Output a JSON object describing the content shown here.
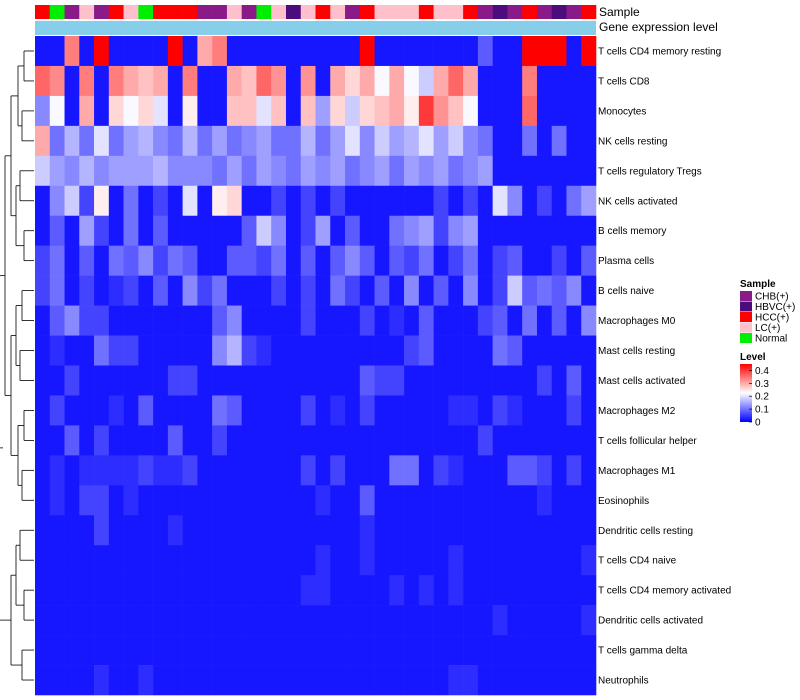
{
  "chart_data": {
    "type": "heatmap",
    "track_labels": {
      "sample": "Sample",
      "gene": "Gene expression level"
    },
    "sample_groups": [
      {
        "name": "CHB(+)",
        "color": "#8B1A89"
      },
      {
        "name": "HBVC(+)",
        "color": "#4B0C7C"
      },
      {
        "name": "HCC(+)",
        "color": "#FF0000"
      },
      {
        "name": "LC(+)",
        "color": "#FFC0CB"
      },
      {
        "name": "Normal",
        "color": "#00EE00"
      }
    ],
    "sample_annotation": [
      2,
      4,
      0,
      3,
      0,
      2,
      3,
      4,
      2,
      2,
      2,
      0,
      0,
      3,
      0,
      4,
      3,
      1,
      3,
      2,
      3,
      0,
      2,
      3,
      3,
      3,
      2,
      3,
      3,
      2,
      0,
      1,
      0,
      2,
      0,
      1,
      0,
      2
    ],
    "gene_expression_color": "#87CEEB",
    "legend": {
      "sample_title": "Sample",
      "level_title": "Level",
      "level_ticks": [
        "0.4",
        "0.3",
        "0.2",
        "0.1",
        "0"
      ],
      "level_tick_values": [
        0.4,
        0.3,
        0.2,
        0.1,
        0
      ],
      "colors": {
        "low": "#0000FF",
        "mid": "#FFFFFF",
        "high": "#FF0000"
      },
      "max": 0.45
    },
    "rows": [
      {
        "label": "T cells CD4 memory resting",
        "values": [
          0.02,
          0.02,
          0.34,
          0.02,
          0.45,
          0.02,
          0.02,
          0.02,
          0.02,
          0.45,
          0.02,
          0.3,
          0.34,
          0.02,
          0.02,
          0.02,
          0.02,
          0.02,
          0.02,
          0.02,
          0.02,
          0.02,
          0.45,
          0.02,
          0.02,
          0.02,
          0.02,
          0.02,
          0.02,
          0.02,
          0.08,
          0.02,
          0.02,
          0.45,
          0.45,
          0.45,
          0.02,
          0.45
        ]
      },
      {
        "label": "T cells CD8",
        "values": [
          0.36,
          0.33,
          0.02,
          0.34,
          0.02,
          0.34,
          0.3,
          0.28,
          0.3,
          0.02,
          0.34,
          0.02,
          0.02,
          0.3,
          0.28,
          0.36,
          0.32,
          0.02,
          0.32,
          0.02,
          0.3,
          0.26,
          0.3,
          0.22,
          0.3,
          0.22,
          0.18,
          0.3,
          0.36,
          0.3,
          0.02,
          0.02,
          0.02,
          0.34,
          0.02,
          0.02,
          0.02,
          0.02
        ]
      },
      {
        "label": "Monocytes",
        "values": [
          0.12,
          0.22,
          0.02,
          0.3,
          0.02,
          0.26,
          0.22,
          0.26,
          0.2,
          0.02,
          0.24,
          0.02,
          0.02,
          0.28,
          0.28,
          0.2,
          0.28,
          0.02,
          0.28,
          0.14,
          0.26,
          0.18,
          0.26,
          0.28,
          0.3,
          0.24,
          0.4,
          0.32,
          0.28,
          0.22,
          0.02,
          0.02,
          0.02,
          0.36,
          0.02,
          0.02,
          0.02,
          0.02
        ]
      },
      {
        "label": "NK cells resting",
        "values": [
          0.3,
          0.1,
          0.16,
          0.1,
          0.2,
          0.1,
          0.14,
          0.16,
          0.12,
          0.1,
          0.16,
          0.1,
          0.14,
          0.1,
          0.12,
          0.14,
          0.1,
          0.1,
          0.16,
          0.1,
          0.14,
          0.2,
          0.12,
          0.18,
          0.14,
          0.16,
          0.2,
          0.14,
          0.18,
          0.12,
          0.1,
          0.02,
          0.02,
          0.1,
          0.02,
          0.1,
          0.02,
          0.02
        ]
      },
      {
        "label": "T cells regulatory  Tregs",
        "values": [
          0.18,
          0.14,
          0.12,
          0.16,
          0.12,
          0.14,
          0.14,
          0.14,
          0.16,
          0.12,
          0.12,
          0.12,
          0.1,
          0.14,
          0.1,
          0.14,
          0.12,
          0.1,
          0.14,
          0.12,
          0.14,
          0.1,
          0.12,
          0.14,
          0.1,
          0.14,
          0.12,
          0.14,
          0.1,
          0.12,
          0.14,
          0.02,
          0.02,
          0.02,
          0.02,
          0.02,
          0.02,
          0.02
        ]
      },
      {
        "label": "NK cells activated",
        "values": [
          0.02,
          0.12,
          0.18,
          0.06,
          0.24,
          0.02,
          0.1,
          0.02,
          0.06,
          0.02,
          0.2,
          0.02,
          0.24,
          0.26,
          0.02,
          0.02,
          0.06,
          0.02,
          0.06,
          0.02,
          0.06,
          0.02,
          0.02,
          0.02,
          0.02,
          0.02,
          0.02,
          0.06,
          0.02,
          0.06,
          0.02,
          0.2,
          0.12,
          0.02,
          0.06,
          0.02,
          0.1,
          0.14
        ]
      },
      {
        "label": "B cells memory",
        "values": [
          0.02,
          0.08,
          0.02,
          0.14,
          0.06,
          0.02,
          0.1,
          0.02,
          0.08,
          0.02,
          0.02,
          0.02,
          0.02,
          0.02,
          0.08,
          0.18,
          0.12,
          0.02,
          0.06,
          0.14,
          0.02,
          0.08,
          0.02,
          0.02,
          0.1,
          0.12,
          0.14,
          0.06,
          0.12,
          0.14,
          0.02,
          0.02,
          0.02,
          0.02,
          0.02,
          0.02,
          0.02,
          0.02
        ]
      },
      {
        "label": "Plasma cells",
        "values": [
          0.06,
          0.1,
          0.02,
          0.08,
          0.02,
          0.1,
          0.08,
          0.12,
          0.06,
          0.1,
          0.08,
          0.02,
          0.02,
          0.08,
          0.08,
          0.06,
          0.1,
          0.02,
          0.08,
          0.02,
          0.08,
          0.12,
          0.08,
          0.02,
          0.08,
          0.06,
          0.1,
          0.02,
          0.06,
          0.1,
          0.02,
          0.06,
          0.08,
          0.02,
          0.02,
          0.06,
          0.02,
          0.08
        ]
      },
      {
        "label": "B cells naive",
        "values": [
          0.06,
          0.1,
          0.02,
          0.06,
          0.02,
          0.04,
          0.06,
          0.02,
          0.08,
          0.02,
          0.12,
          0.06,
          0.1,
          0.02,
          0.02,
          0.02,
          0.06,
          0.02,
          0.06,
          0.02,
          0.1,
          0.06,
          0.02,
          0.08,
          0.02,
          0.12,
          0.02,
          0.08,
          0.02,
          0.12,
          0.02,
          0.06,
          0.18,
          0.08,
          0.1,
          0.08,
          0.12,
          0.02
        ]
      },
      {
        "label": "Macrophages M0",
        "values": [
          0.02,
          0.08,
          0.12,
          0.06,
          0.06,
          0.02,
          0.02,
          0.02,
          0.02,
          0.02,
          0.02,
          0.02,
          0.08,
          0.12,
          0.02,
          0.02,
          0.02,
          0.02,
          0.06,
          0.02,
          0.02,
          0.02,
          0.06,
          0.02,
          0.04,
          0.02,
          0.08,
          0.02,
          0.02,
          0.02,
          0.06,
          0.08,
          0.02,
          0.1,
          0.02,
          0.08,
          0.02,
          0.12
        ]
      },
      {
        "label": "Mast cells resting",
        "values": [
          0.02,
          0.04,
          0.02,
          0.02,
          0.1,
          0.06,
          0.06,
          0.02,
          0.02,
          0.02,
          0.02,
          0.02,
          0.12,
          0.16,
          0.06,
          0.04,
          0.02,
          0.02,
          0.02,
          0.02,
          0.02,
          0.02,
          0.02,
          0.02,
          0.02,
          0.06,
          0.08,
          0.02,
          0.02,
          0.02,
          0.02,
          0.1,
          0.08,
          0.02,
          0.02,
          0.02,
          0.02,
          0.02
        ]
      },
      {
        "label": "Mast cells activated",
        "values": [
          0.02,
          0.02,
          0.06,
          0.02,
          0.02,
          0.02,
          0.02,
          0.02,
          0.02,
          0.06,
          0.06,
          0.02,
          0.02,
          0.02,
          0.02,
          0.02,
          0.02,
          0.02,
          0.02,
          0.02,
          0.02,
          0.02,
          0.08,
          0.06,
          0.06,
          0.02,
          0.02,
          0.02,
          0.02,
          0.02,
          0.02,
          0.02,
          0.02,
          0.02,
          0.06,
          0.02,
          0.08,
          0.02
        ]
      },
      {
        "label": "Macrophages M2",
        "values": [
          0.02,
          0.06,
          0.02,
          0.02,
          0.02,
          0.04,
          0.02,
          0.08,
          0.02,
          0.02,
          0.02,
          0.02,
          0.1,
          0.08,
          0.02,
          0.02,
          0.02,
          0.02,
          0.06,
          0.02,
          0.04,
          0.02,
          0.06,
          0.02,
          0.02,
          0.02,
          0.02,
          0.02,
          0.04,
          0.04,
          0.02,
          0.06,
          0.04,
          0.02,
          0.02,
          0.02,
          0.06,
          0.02
        ]
      },
      {
        "label": "T cells follicular helper",
        "values": [
          0.02,
          0.02,
          0.08,
          0.02,
          0.06,
          0.02,
          0.02,
          0.02,
          0.02,
          0.08,
          0.02,
          0.02,
          0.06,
          0.02,
          0.02,
          0.02,
          0.02,
          0.02,
          0.02,
          0.02,
          0.02,
          0.02,
          0.02,
          0.02,
          0.02,
          0.02,
          0.02,
          0.02,
          0.02,
          0.02,
          0.06,
          0.02,
          0.02,
          0.02,
          0.02,
          0.02,
          0.02,
          0.02
        ]
      },
      {
        "label": "Macrophages M1",
        "values": [
          0.02,
          0.04,
          0.02,
          0.04,
          0.04,
          0.04,
          0.04,
          0.06,
          0.04,
          0.04,
          0.06,
          0.02,
          0.02,
          0.02,
          0.02,
          0.02,
          0.02,
          0.02,
          0.06,
          0.02,
          0.06,
          0.02,
          0.02,
          0.02,
          0.1,
          0.1,
          0.02,
          0.06,
          0.04,
          0.02,
          0.02,
          0.02,
          0.08,
          0.08,
          0.06,
          0.02,
          0.06,
          0.02
        ]
      },
      {
        "label": "Eosinophils",
        "values": [
          0.02,
          0.04,
          0.02,
          0.06,
          0.06,
          0.02,
          0.04,
          0.02,
          0.02,
          0.02,
          0.02,
          0.02,
          0.02,
          0.02,
          0.02,
          0.02,
          0.02,
          0.02,
          0.02,
          0.04,
          0.02,
          0.02,
          0.08,
          0.02,
          0.02,
          0.02,
          0.02,
          0.02,
          0.02,
          0.02,
          0.02,
          0.02,
          0.02,
          0.02,
          0.04,
          0.02,
          0.02,
          0.02
        ]
      },
      {
        "label": "Dendritic cells resting",
        "values": [
          0.02,
          0.02,
          0.02,
          0.02,
          0.06,
          0.02,
          0.02,
          0.02,
          0.02,
          0.04,
          0.02,
          0.02,
          0.02,
          0.02,
          0.02,
          0.02,
          0.02,
          0.02,
          0.02,
          0.02,
          0.02,
          0.02,
          0.04,
          0.02,
          0.02,
          0.02,
          0.02,
          0.02,
          0.02,
          0.02,
          0.02,
          0.02,
          0.02,
          0.02,
          0.02,
          0.02,
          0.02,
          0.02
        ]
      },
      {
        "label": "T cells CD4 naive",
        "values": [
          0.02,
          0.02,
          0.02,
          0.02,
          0.02,
          0.02,
          0.02,
          0.02,
          0.02,
          0.02,
          0.02,
          0.02,
          0.02,
          0.02,
          0.02,
          0.02,
          0.02,
          0.02,
          0.02,
          0.04,
          0.02,
          0.02,
          0.04,
          0.02,
          0.02,
          0.02,
          0.02,
          0.02,
          0.04,
          0.02,
          0.02,
          0.02,
          0.02,
          0.02,
          0.02,
          0.02,
          0.02,
          0.04
        ]
      },
      {
        "label": "T cells CD4 memory activated",
        "values": [
          0.02,
          0.02,
          0.02,
          0.02,
          0.02,
          0.02,
          0.02,
          0.02,
          0.02,
          0.02,
          0.02,
          0.02,
          0.02,
          0.02,
          0.02,
          0.02,
          0.02,
          0.02,
          0.04,
          0.04,
          0.02,
          0.02,
          0.02,
          0.02,
          0.04,
          0.02,
          0.04,
          0.02,
          0.04,
          0.02,
          0.02,
          0.02,
          0.02,
          0.02,
          0.02,
          0.02,
          0.02,
          0.02
        ]
      },
      {
        "label": "Dendritic cells activated",
        "values": [
          0.02,
          0.02,
          0.02,
          0.02,
          0.02,
          0.02,
          0.02,
          0.02,
          0.02,
          0.02,
          0.02,
          0.02,
          0.02,
          0.02,
          0.02,
          0.02,
          0.02,
          0.02,
          0.02,
          0.02,
          0.02,
          0.02,
          0.02,
          0.02,
          0.02,
          0.02,
          0.02,
          0.02,
          0.02,
          0.02,
          0.02,
          0.04,
          0.02,
          0.02,
          0.02,
          0.02,
          0.02,
          0.04
        ]
      },
      {
        "label": "T cells gamma delta",
        "values": [
          0.02,
          0.02,
          0.02,
          0.02,
          0.02,
          0.02,
          0.02,
          0.02,
          0.02,
          0.02,
          0.02,
          0.02,
          0.02,
          0.02,
          0.02,
          0.02,
          0.02,
          0.02,
          0.02,
          0.02,
          0.02,
          0.02,
          0.02,
          0.02,
          0.02,
          0.02,
          0.02,
          0.02,
          0.02,
          0.02,
          0.02,
          0.02,
          0.02,
          0.02,
          0.02,
          0.02,
          0.02,
          0.02
        ]
      },
      {
        "label": "Neutrophils",
        "values": [
          0.02,
          0.02,
          0.02,
          0.02,
          0.04,
          0.02,
          0.02,
          0.04,
          0.02,
          0.02,
          0.02,
          0.02,
          0.02,
          0.02,
          0.02,
          0.02,
          0.02,
          0.02,
          0.02,
          0.02,
          0.02,
          0.02,
          0.02,
          0.02,
          0.02,
          0.02,
          0.02,
          0.02,
          0.04,
          0.04,
          0.02,
          0.02,
          0.02,
          0.02,
          0.02,
          0.02,
          0.02,
          0.02
        ]
      }
    ],
    "dendrogram": [
      {
        "a": 0,
        "b": 1
      },
      {
        "a": 2,
        "b": 3
      },
      {
        "a": 4,
        "b": 5
      },
      {
        "a": 6,
        "b": 7
      },
      {
        "a": 8,
        "b": 9
      },
      {
        "a": 10,
        "b": 11
      },
      {
        "a": 12,
        "b": 13
      },
      {
        "a": 14,
        "b": 15
      },
      {
        "a": 16,
        "b": 17
      },
      {
        "a": 18,
        "b": 19
      },
      {
        "a": 20,
        "b": 21
      }
    ]
  }
}
